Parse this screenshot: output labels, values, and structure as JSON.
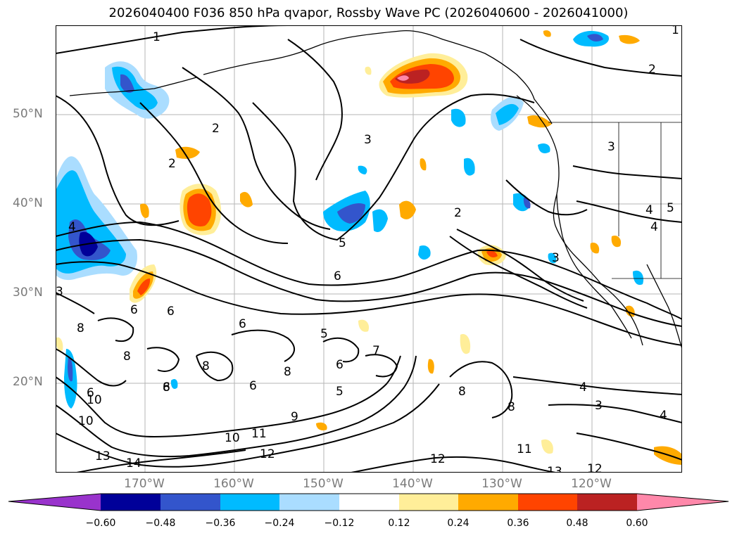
{
  "title": "2026040400 F036 850 hPa qvapor, Rossby Wave PC (2026040600 - 2026041000)",
  "lat_labels": [
    "50°N",
    "40°N",
    "30°N",
    "20°N"
  ],
  "lon_labels": [
    "170°W",
    "160°W",
    "150°W",
    "140°W",
    "130°W",
    "120°W"
  ],
  "colorbar": {
    "ticks": [
      "−0.60",
      "−0.48",
      "−0.36",
      "−0.24",
      "−0.12",
      "0.12",
      "0.24",
      "0.36",
      "0.48",
      "0.60"
    ],
    "colors": {
      "extend_low": "#9933cc",
      "bin_1": "#000099",
      "bin_2": "#3355cc",
      "bin_3": "#00bbff",
      "bin_4": "#aaddff",
      "bin_5": "#ffffff",
      "bin_6": "#ffee99",
      "bin_7": "#ffaa00",
      "bin_8": "#ff4400",
      "bin_9": "#bb2222",
      "extend_high": "#ff88aa"
    }
  },
  "contour_labels": [
    "1",
    "1",
    "2",
    "2",
    "2",
    "2",
    "3",
    "3",
    "3",
    "3",
    "3",
    "4",
    "4",
    "4",
    "4",
    "4",
    "5",
    "5",
    "5",
    "5",
    "6",
    "6",
    "6",
    "6",
    "6",
    "6",
    "6",
    "6",
    "7",
    "8",
    "8",
    "8",
    "8",
    "8",
    "8",
    "8",
    "9",
    "10",
    "10",
    "10",
    "11",
    "11",
    "12",
    "12",
    "12",
    "13",
    "13",
    "14"
  ]
}
